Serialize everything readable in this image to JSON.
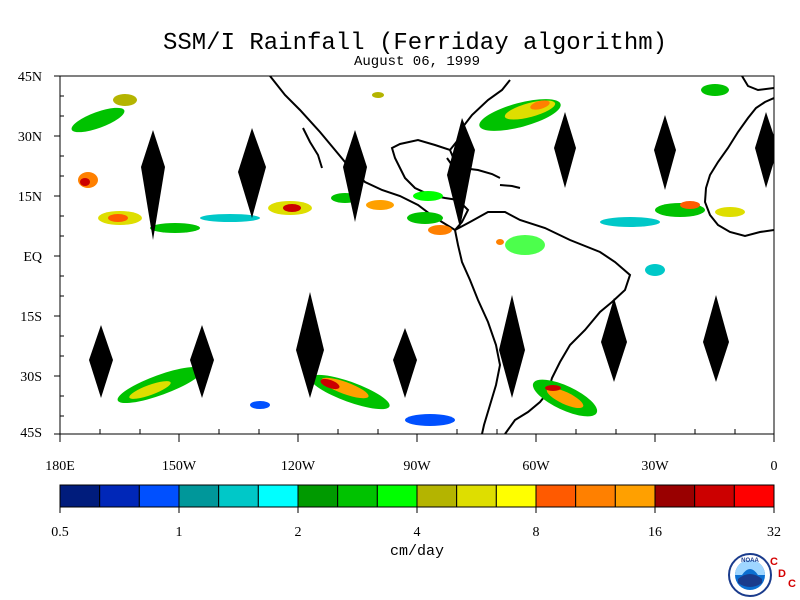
{
  "title": "SSM/I Rainfall (Ferriday algorithm)",
  "date": "August 06, 1999",
  "lat_labels": [
    "45N",
    "30N",
    "15N",
    "EQ",
    "15S",
    "30S",
    "45S"
  ],
  "lon_labels": [
    "180E",
    "150W",
    "120W",
    "90W",
    "60W",
    "30W",
    "0"
  ],
  "colorbar": {
    "units": "cm/day",
    "labels": [
      "0.5",
      "1",
      "2",
      "4",
      "8",
      "16",
      "32"
    ],
    "colors": [
      "#001c7c",
      "#0027b8",
      "#0050ff",
      "#00979a",
      "#00c8c8",
      "#00ffff",
      "#009a00",
      "#00c200",
      "#00ff00",
      "#b4b400",
      "#dede00",
      "#ffff00",
      "#ff5a00",
      "#ff8000",
      "#ffa000",
      "#990000",
      "#cc0000",
      "#ff0000"
    ]
  },
  "logo": {
    "text": "NOAA",
    "letters": [
      "C",
      "D",
      "C"
    ]
  }
}
